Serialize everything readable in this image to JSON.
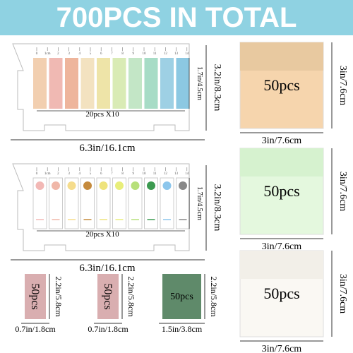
{
  "header": {
    "title": "700PCS IN TOTAL"
  },
  "tab_sets": [
    {
      "height_label": "3.2in/8.3cm",
      "tab_height_label": "1.7in/4.5cm",
      "count_label": "20pcs X10",
      "width_label": "6.3in/16.1cm",
      "ruler": [
        "0",
        "1cm",
        "2",
        "3",
        "4",
        "5",
        "6",
        "7",
        "8",
        "9",
        "10",
        "11",
        "12",
        "13",
        "14"
      ]
    },
    {
      "height_label": "3.2in/8.3cm",
      "tab_height_label": "1.7in/4.5cm",
      "count_label": "20pcs X10",
      "width_label": "6.3in/16.1cm",
      "ruler": [
        "0",
        "1cm",
        "2",
        "3",
        "4",
        "5",
        "6",
        "7",
        "8",
        "9",
        "10",
        "11",
        "12",
        "13",
        "14"
      ]
    }
  ],
  "square_notes": [
    {
      "label": "50pcs",
      "height_label": "3in/7.6cm",
      "width_label": "3in/7.6cm"
    },
    {
      "label": "50pcs",
      "height_label": "3in/7.6cm",
      "width_label": "3in/7.6cm"
    },
    {
      "label": "50pcs",
      "height_label": "3in/7.6cm",
      "width_label": "3in/7.6cm"
    }
  ],
  "strip_notes": [
    {
      "label": "50pcs",
      "height_label": "2.2in/5.8cm",
      "width_label": "0.7in/1.8cm"
    },
    {
      "label": "50pcs",
      "height_label": "2.2in/5.8cm",
      "width_label": "0.7in/1.8cm"
    },
    {
      "label": "50pcs",
      "height_label": "2.2in/5.8cm",
      "width_label": "1.5in/3.8cm"
    }
  ]
}
